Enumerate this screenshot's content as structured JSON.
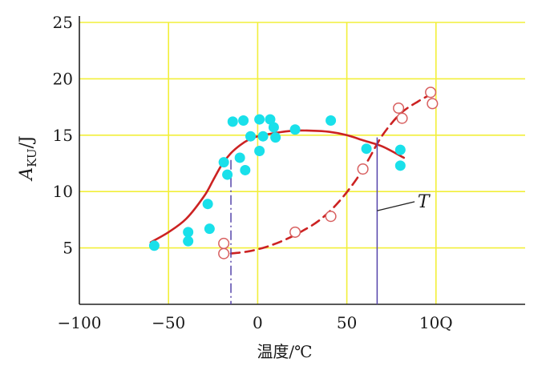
{
  "chart_data": {
    "type": "scatter",
    "xlabel": "温度/℃",
    "ylabel_main": "A",
    "ylabel_sub": "KU",
    "ylabel_unit": "/J",
    "xlim": [
      -100,
      150
    ],
    "ylim": [
      0,
      25
    ],
    "x_ticks": [
      -100,
      -50,
      0,
      50,
      100
    ],
    "x_tick_labels": [
      "−100",
      "−50",
      "0",
      "50",
      "10Q"
    ],
    "y_ticks": [
      5,
      10,
      15,
      20,
      25
    ],
    "y_tick_labels": [
      "5",
      "10",
      "15",
      "20",
      "25"
    ],
    "grid": true,
    "series": [
      {
        "marker": "filled-circle",
        "color": "#19e0ea",
        "points": [
          [
            -58,
            5.2
          ],
          [
            -39,
            6.4
          ],
          [
            -39,
            5.6
          ],
          [
            -28,
            8.9
          ],
          [
            -27,
            6.7
          ],
          [
            -19,
            12.6
          ],
          [
            -17,
            11.5
          ],
          [
            -14,
            16.2
          ],
          [
            -8,
            16.3
          ],
          [
            -10,
            13.0
          ],
          [
            -7,
            11.9
          ],
          [
            -4,
            14.9
          ],
          [
            1,
            16.4
          ],
          [
            1,
            13.6
          ],
          [
            3,
            14.9
          ],
          [
            7,
            16.4
          ],
          [
            9,
            15.7
          ],
          [
            10,
            14.8
          ],
          [
            21,
            15.5
          ],
          [
            41,
            16.3
          ],
          [
            61,
            13.8
          ],
          [
            80,
            13.7
          ],
          [
            80,
            12.3
          ]
        ]
      },
      {
        "marker": "open-circle",
        "color": "#d86060",
        "points": [
          [
            -19,
            5.4
          ],
          [
            -19,
            4.5
          ],
          [
            21,
            6.4
          ],
          [
            41,
            7.8
          ],
          [
            59,
            12.0
          ],
          [
            79,
            17.4
          ],
          [
            81,
            16.5
          ],
          [
            97,
            18.8
          ],
          [
            98,
            17.8
          ]
        ]
      }
    ],
    "curves": [
      {
        "style": "solid",
        "color": "#cc2222",
        "points": [
          [
            -60,
            5.5
          ],
          [
            -50,
            6.4
          ],
          [
            -40,
            7.6
          ],
          [
            -30,
            9.6
          ],
          [
            -25,
            11.0
          ],
          [
            -20,
            12.4
          ],
          [
            -15,
            13.4
          ],
          [
            -10,
            14.1
          ],
          [
            -5,
            14.6
          ],
          [
            0,
            14.9
          ],
          [
            10,
            15.2
          ],
          [
            20,
            15.4
          ],
          [
            30,
            15.4
          ],
          [
            40,
            15.3
          ],
          [
            50,
            15.0
          ],
          [
            60,
            14.5
          ],
          [
            70,
            14.0
          ],
          [
            82,
            13.0
          ]
        ]
      },
      {
        "style": "dashed",
        "color": "#cc2222",
        "points": [
          [
            -15,
            4.5
          ],
          [
            -5,
            4.7
          ],
          [
            5,
            5.1
          ],
          [
            15,
            5.7
          ],
          [
            25,
            6.5
          ],
          [
            35,
            7.5
          ],
          [
            45,
            9.0
          ],
          [
            55,
            11.0
          ],
          [
            62,
            12.8
          ],
          [
            70,
            15.0
          ],
          [
            80,
            16.9
          ],
          [
            90,
            18.0
          ],
          [
            97,
            18.6
          ]
        ]
      }
    ],
    "transition_markers": [
      {
        "x": -15,
        "y_top": 12.8,
        "style": "dash-dot",
        "color": "#5544aa"
      },
      {
        "x": 67,
        "y_top": 14.8,
        "style": "solid",
        "color": "#5544aa"
      }
    ],
    "annotation": {
      "text": "T",
      "x": 93,
      "y": 9.1,
      "leader_from": [
        67,
        8.3
      ],
      "leader_to": [
        88,
        9.1
      ]
    }
  }
}
